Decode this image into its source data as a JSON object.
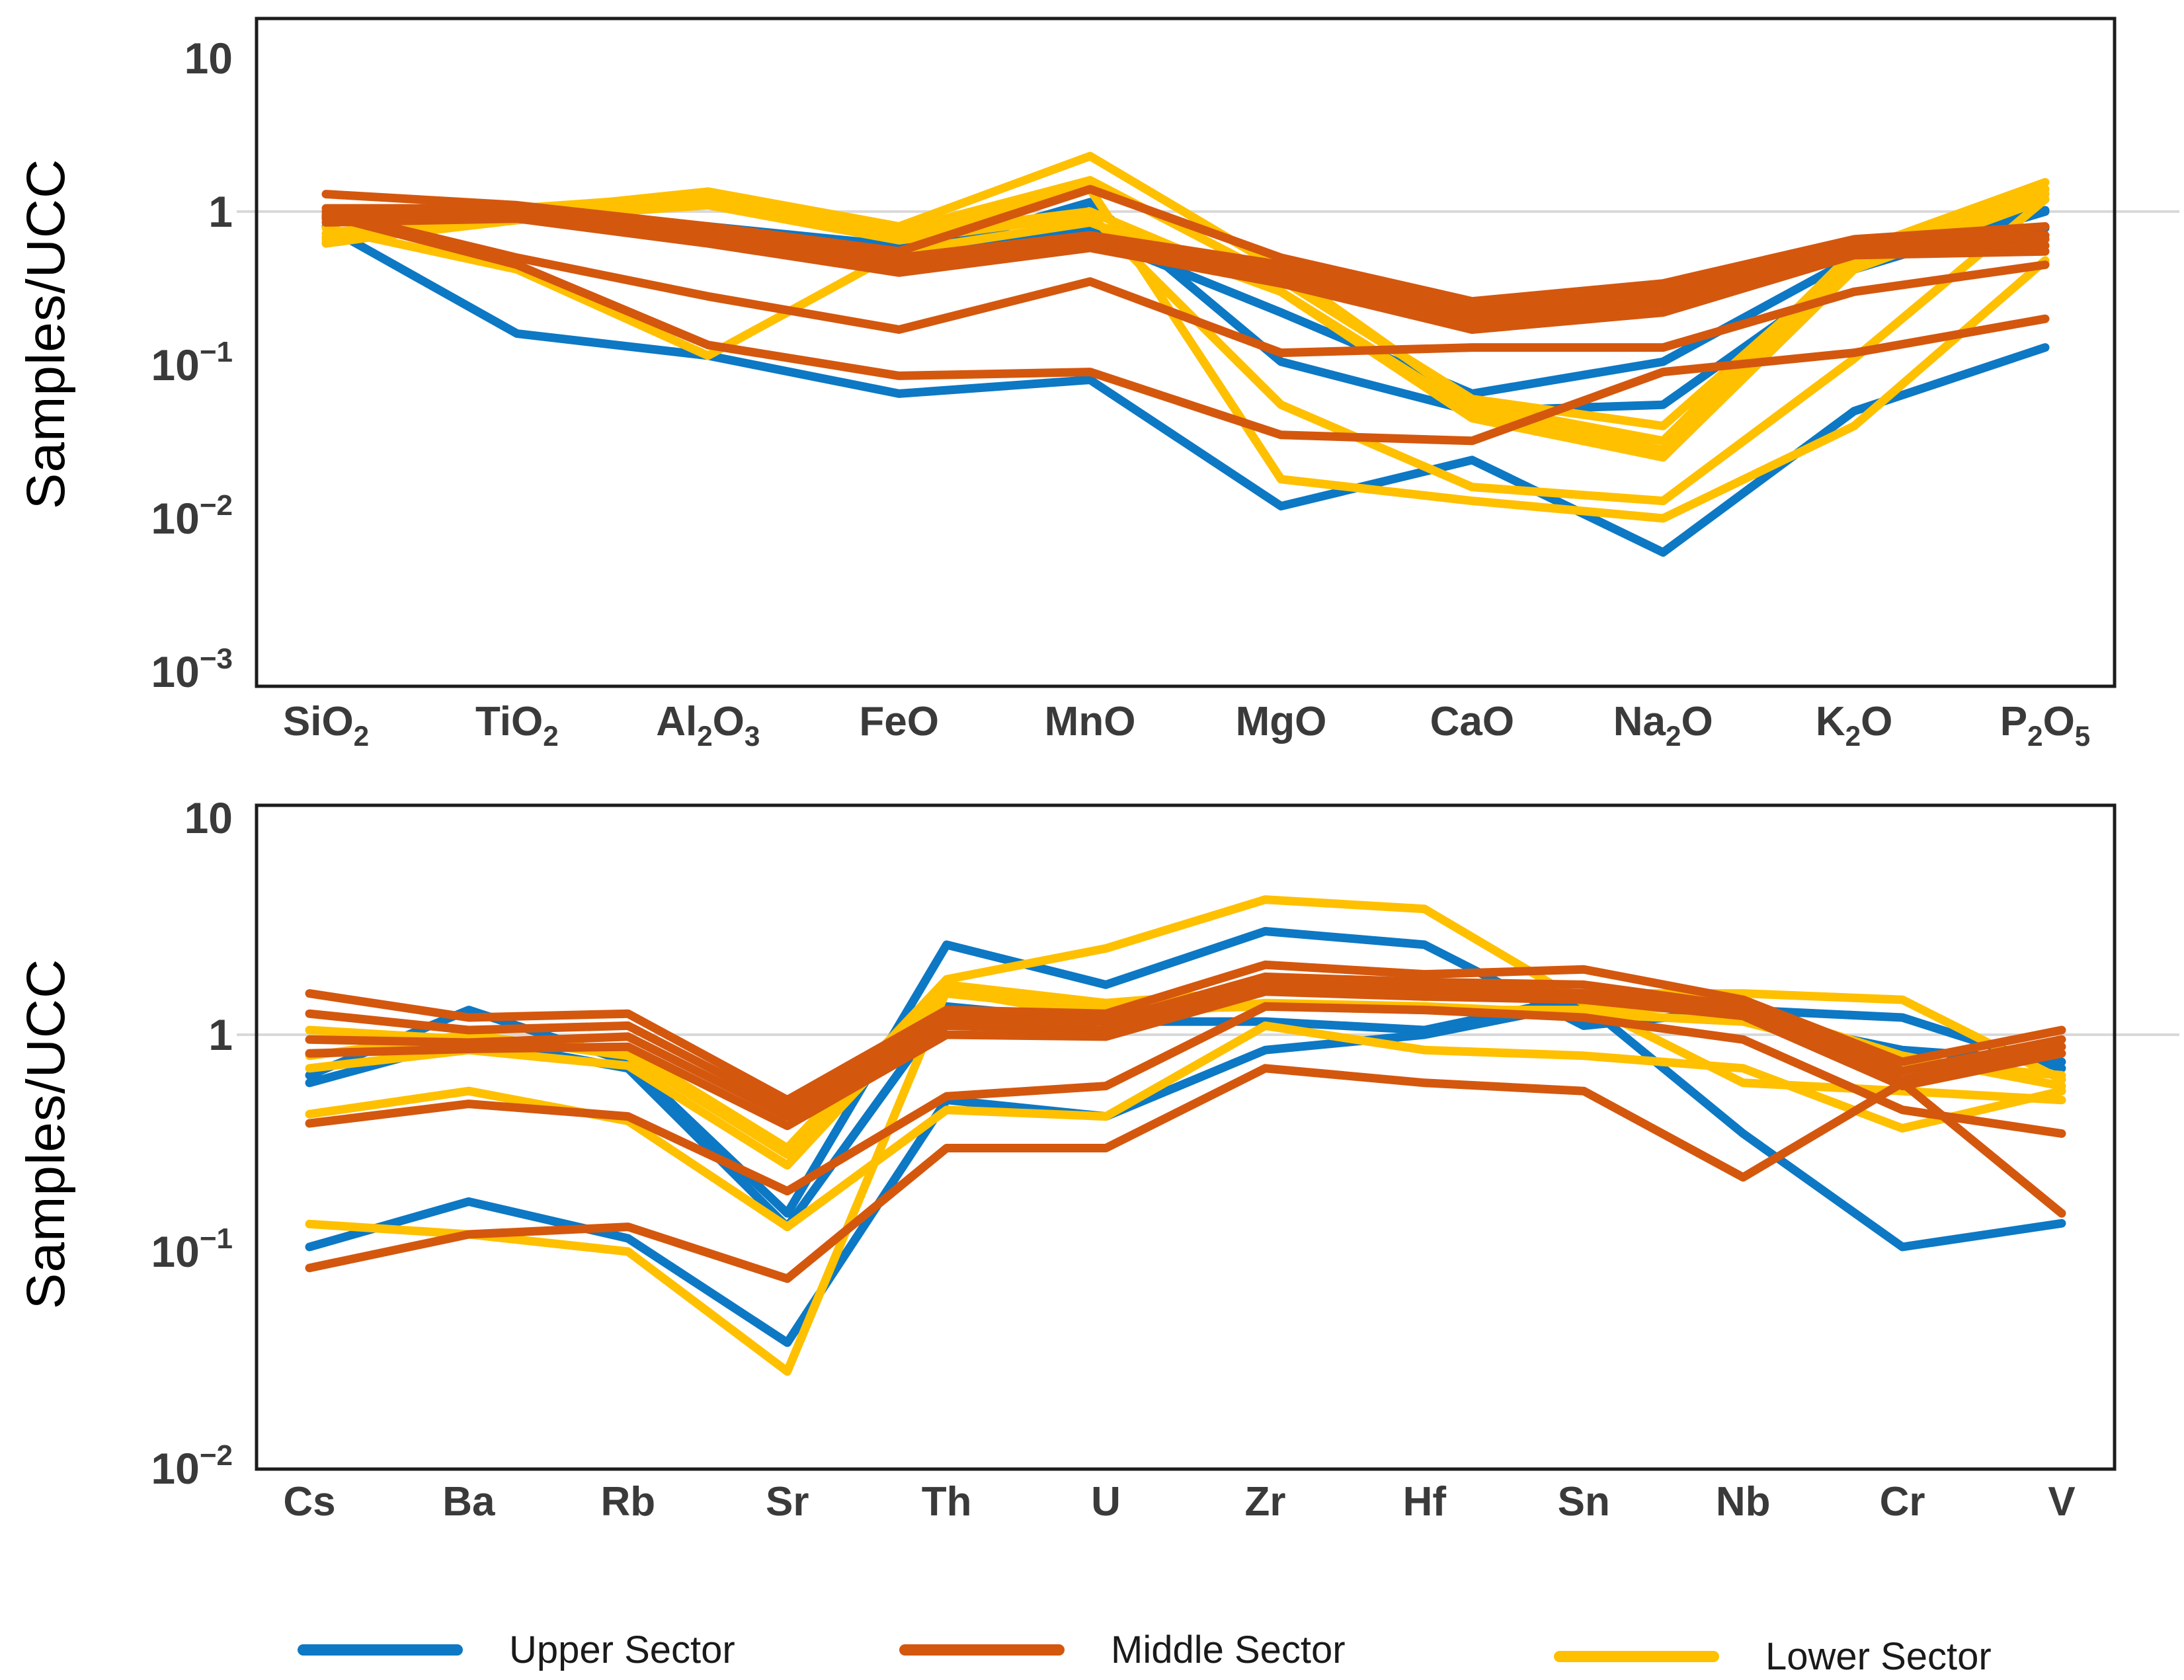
{
  "ylabel": "Samples/UCC",
  "colors": {
    "upper": "#0d78c4",
    "middle": "#d4570e",
    "lower": "#ffc000",
    "grid": "#d9d9d9",
    "frame": "#1c1c1c",
    "tick_text": "#3a3a3a",
    "category_text": "#3a3a3a",
    "axis_label_text": "#000000",
    "legend_text": "#1a1a1a"
  },
  "legend": {
    "position": "bottom",
    "items": [
      {
        "label": "Upper Sector",
        "series": "upper"
      },
      {
        "label": "Middle Sector",
        "series": "middle"
      },
      {
        "label": "Lower Sector",
        "series": "lower"
      }
    ]
  },
  "chart_data": [
    {
      "type": "line",
      "title": "",
      "xlabel": "",
      "ylabel": "Samples/UCC",
      "y_scale": "log",
      "ylim": [
        0.001,
        15
      ],
      "grid": "horizontal line at y=1 only",
      "y_ticks_labels": [
        "10",
        "1",
        "10^−1",
        "10^−2",
        "10^−3"
      ],
      "y_ticks_values": [
        10,
        1,
        0.1,
        0.01,
        0.001
      ],
      "categories": [
        "SiO2",
        "TiO2",
        "Al2O3",
        "FeO",
        "MnO",
        "MgO",
        "CaO",
        "Na2O",
        "K2O",
        "P2O5"
      ],
      "series": [
        {
          "name": "Upper Sector",
          "color_key": "upper",
          "lines": [
            [
              0.8,
              0.16,
              0.115,
              0.065,
              0.08,
              0.012,
              0.024,
              0.006,
              0.05,
              0.13
            ],
            [
              0.92,
              0.95,
              0.7,
              0.5,
              1.15,
              0.105,
              0.05,
              0.055,
              0.42,
              1.0
            ],
            [
              0.95,
              1.0,
              0.75,
              0.55,
              0.7,
              0.22,
              0.065,
              0.105,
              0.5,
              1.02
            ],
            [
              0.9,
              1.05,
              0.8,
              0.6,
              0.75,
              0.4,
              0.22,
              0.3,
              0.6,
              0.78
            ]
          ]
        },
        {
          "name": "Lower Sector",
          "color_key": "lower",
          "lines": [
            [
              0.68,
              1.0,
              1.35,
              0.8,
              2.3,
              0.42,
              0.055,
              0.032,
              0.55,
              1.55
            ],
            [
              0.72,
              1.05,
              1.28,
              0.75,
              1.6,
              0.36,
              0.06,
              0.04,
              0.5,
              1.4
            ],
            [
              0.62,
              0.92,
              1.2,
              0.7,
              1.0,
              0.3,
              0.05,
              0.028,
              0.45,
              1.3
            ],
            [
              0.78,
              0.42,
              0.115,
              0.55,
              0.85,
              0.3,
              0.045,
              0.025,
              0.42,
              1.2
            ],
            [
              0.66,
              0.9,
              1.1,
              0.65,
              0.95,
              0.055,
              0.016,
              0.013,
              0.11,
              1.2
            ],
            [
              0.63,
              0.88,
              1.15,
              0.68,
              1.4,
              0.018,
              0.013,
              0.01,
              0.04,
              0.48
            ]
          ]
        },
        {
          "name": "Middle Sector",
          "color_key": "middle",
          "lines": [
            [
              1.3,
              1.1,
              0.8,
              0.55,
              1.4,
              0.5,
              0.26,
              0.34,
              0.66,
              0.8
            ],
            [
              1.05,
              1.05,
              0.75,
              0.5,
              0.7,
              0.45,
              0.23,
              0.3,
              0.62,
              0.7
            ],
            [
              0.95,
              1.0,
              0.72,
              0.46,
              0.66,
              0.42,
              0.21,
              0.28,
              0.6,
              0.66
            ],
            [
              0.9,
              0.95,
              0.68,
              0.43,
              0.62,
              0.38,
              0.19,
              0.25,
              0.56,
              0.6
            ],
            [
              0.85,
              0.9,
              0.62,
              0.4,
              0.58,
              0.34,
              0.17,
              0.22,
              0.52,
              0.55
            ],
            [
              1.0,
              0.5,
              0.28,
              0.17,
              0.35,
              0.12,
              0.13,
              0.13,
              0.3,
              0.45
            ],
            [
              0.95,
              0.45,
              0.135,
              0.085,
              0.09,
              0.035,
              0.032,
              0.09,
              0.12,
              0.2
            ]
          ]
        }
      ]
    },
    {
      "type": "line",
      "title": "",
      "xlabel": "",
      "ylabel": "Samples/UCC",
      "y_scale": "log",
      "ylim": [
        0.01,
        11
      ],
      "grid": "horizontal line at y=1 only",
      "y_ticks_labels": [
        "10",
        "1",
        "10^−1",
        "10^−2"
      ],
      "y_ticks_values": [
        10,
        1,
        0.1,
        0.01
      ],
      "categories": [
        "Cs",
        "Ba",
        "Rb",
        "Sr",
        "Th",
        "U",
        "Zr",
        "Hf",
        "Sn",
        "Nb",
        "Cr",
        "V"
      ],
      "series": [
        {
          "name": "Upper Sector",
          "color_key": "upper",
          "lines": [
            [
              0.65,
              1.3,
              0.75,
              0.15,
              2.6,
              1.7,
              3.0,
              2.6,
              1.1,
              1.3,
              1.2,
              0.7
            ],
            [
              0.6,
              0.95,
              0.7,
              0.13,
              1.35,
              1.15,
              1.15,
              1.05,
              1.5,
              1.2,
              0.85,
              0.75
            ],
            [
              0.105,
              0.17,
              0.115,
              0.038,
              0.5,
              0.42,
              0.85,
              1.0,
              1.4,
              0.35,
              0.105,
              0.135
            ]
          ]
        },
        {
          "name": "Lower Sector",
          "color_key": "lower",
          "lines": [
            [
              1.05,
              0.95,
              0.85,
              0.3,
              1.8,
              2.5,
              4.2,
              3.8,
              1.4,
              0.6,
              0.55,
              0.5
            ],
            [
              0.8,
              1.0,
              0.8,
              0.28,
              1.7,
              1.4,
              1.6,
              1.5,
              1.55,
              1.55,
              1.45,
              0.62
            ],
            [
              0.7,
              0.85,
              0.72,
              0.25,
              1.55,
              1.3,
              1.35,
              1.3,
              1.3,
              1.35,
              0.8,
              0.58
            ],
            [
              0.43,
              0.55,
              0.4,
              0.13,
              0.45,
              0.42,
              1.1,
              0.85,
              0.8,
              0.7,
              0.37,
              0.55
            ],
            [
              0.134,
              0.12,
              0.1,
              0.028,
              1.6,
              1.2,
              1.4,
              1.35,
              1.25,
              1.15,
              0.75,
              0.65
            ]
          ]
        },
        {
          "name": "Middle Sector",
          "color_key": "middle",
          "lines": [
            [
              1.55,
              1.2,
              1.25,
              0.5,
              1.3,
              1.25,
              2.1,
              1.9,
              2.0,
              1.45,
              0.75,
              1.05
            ],
            [
              1.25,
              1.05,
              1.1,
              0.46,
              1.2,
              1.15,
              1.85,
              1.75,
              1.7,
              1.35,
              0.68,
              0.95
            ],
            [
              0.95,
              0.92,
              0.98,
              0.42,
              1.1,
              1.05,
              1.7,
              1.62,
              1.55,
              1.28,
              0.62,
              0.88
            ],
            [
              0.82,
              0.86,
              0.88,
              0.38,
              1.0,
              0.98,
              1.58,
              1.5,
              1.45,
              1.22,
              0.58,
              0.82
            ],
            [
              0.39,
              0.48,
              0.42,
              0.19,
              0.52,
              0.58,
              1.35,
              1.3,
              1.2,
              0.95,
              0.45,
              0.35
            ],
            [
              0.084,
              0.12,
              0.13,
              0.075,
              0.3,
              0.3,
              0.7,
              0.6,
              0.55,
              0.22,
              0.6,
              0.15
            ]
          ]
        }
      ]
    }
  ]
}
